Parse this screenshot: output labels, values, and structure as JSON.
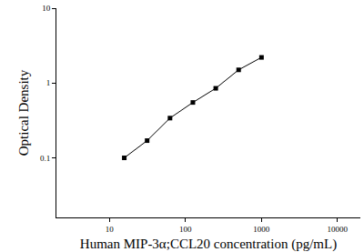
{
  "chart_data": {
    "type": "line",
    "x_label": "Human MIP-3α;CCL20 concentration (pg/mL)",
    "y_label": "Optical Density",
    "x": [
      15.63,
      31.25,
      62.5,
      125,
      250,
      500,
      1000
    ],
    "values": [
      0.1,
      0.17,
      0.34,
      0.55,
      0.85,
      1.5,
      2.2
    ],
    "color": "#000000",
    "marker": "square",
    "line_style": "solid",
    "log": true,
    "xlim": [
      2,
      20000
    ],
    "xticks": [
      10,
      100,
      1000,
      10000
    ],
    "ylim": [
      0.016,
      10
    ],
    "yticks": [
      0.1,
      1,
      10
    ],
    "grid": false
  }
}
